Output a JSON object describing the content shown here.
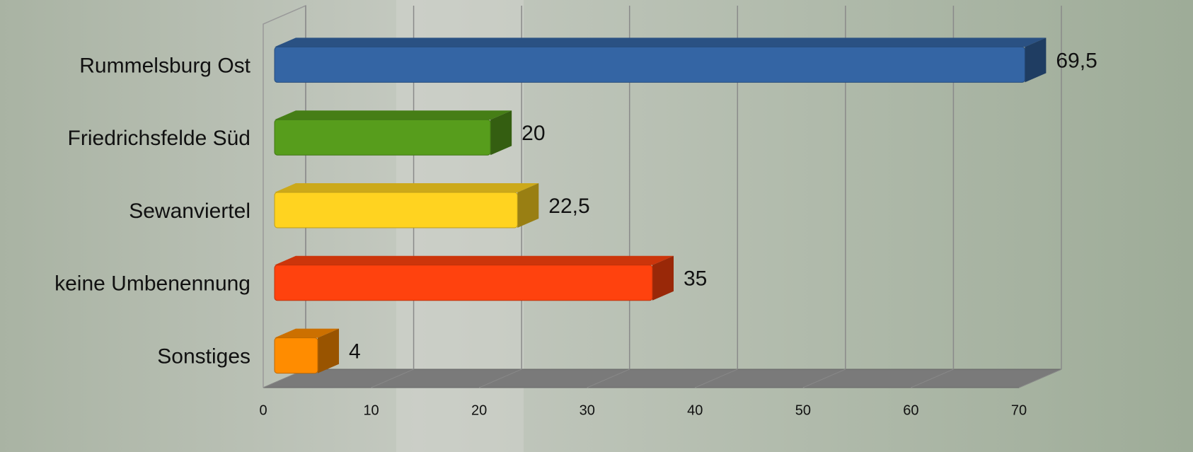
{
  "chart_data": {
    "type": "bar",
    "orientation": "horizontal",
    "categories": [
      "Rummelsburg Ost",
      "Friedrichsfelde Süd",
      "Sewanviertel",
      "keine Umbenennung",
      "Sonstiges"
    ],
    "values": [
      69.5,
      20,
      22.5,
      35,
      4
    ],
    "value_labels": [
      "69,5",
      "20",
      "22,5",
      "35",
      "4"
    ],
    "colors": [
      "#3465a4",
      "#579d1c",
      "#ffd320",
      "#ff420e",
      "#ff8c00"
    ],
    "xlim": [
      0,
      70
    ],
    "xticks": [
      0,
      10,
      20,
      30,
      40,
      50,
      60,
      70
    ],
    "grid": true
  }
}
